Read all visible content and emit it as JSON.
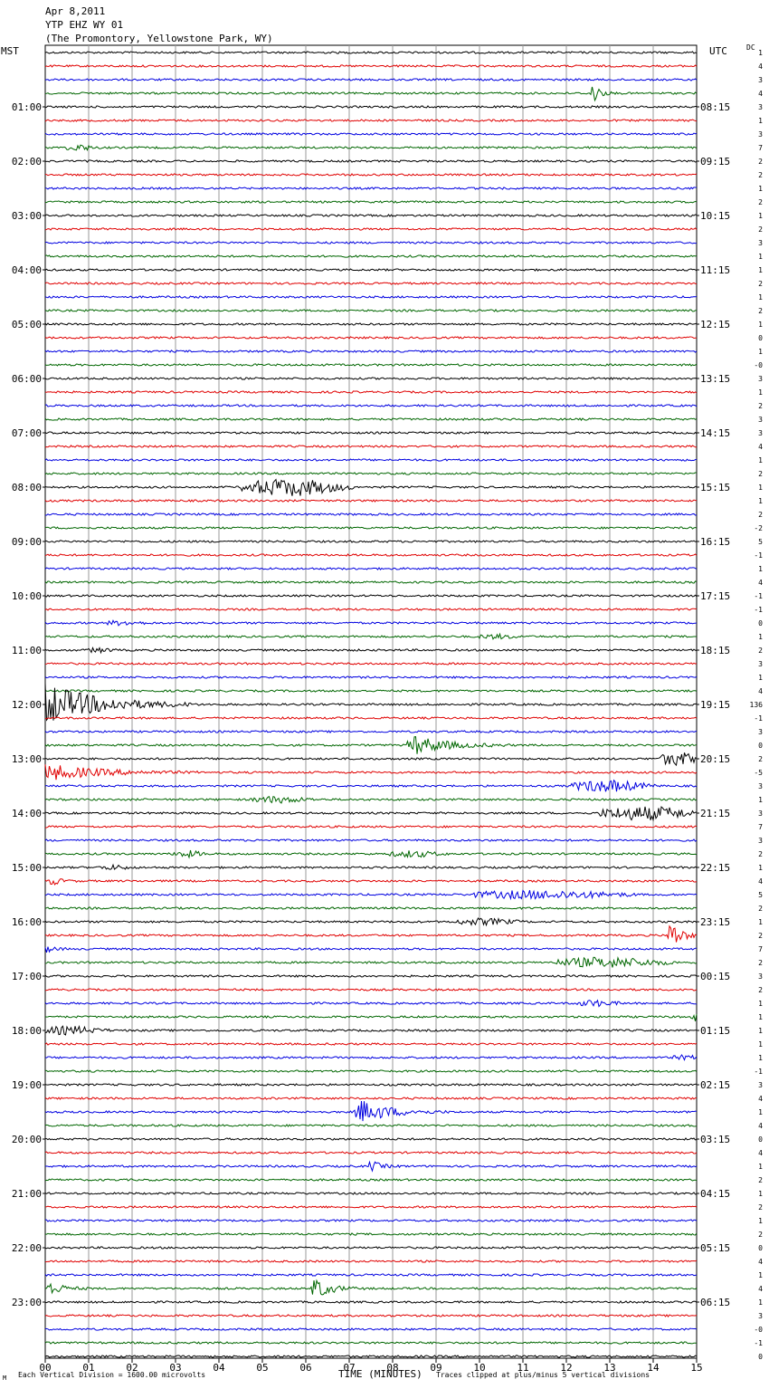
{
  "header": {
    "date": "Apr 8,2011",
    "station": "YTP EHZ WY 01",
    "location": "(The Promontory, Yellowstone Park, WY)"
  },
  "left_axis_title": "MST",
  "right_axis_title": "UTC",
  "dc_title": "DC",
  "footer": {
    "scale_note": "Each Vertical Division = 1600.00 microvolts",
    "xlabel": "TIME (MINUTES)",
    "clip_note": "Traces clipped at plus/minus 5 vertical divisions",
    "corner_mark": "M"
  },
  "chart_data": {
    "type": "line",
    "x_range": [
      0,
      15
    ],
    "x_ticks": [
      "00",
      "01",
      "02",
      "03",
      "04",
      "05",
      "06",
      "07",
      "08",
      "09",
      "10",
      "11",
      "12",
      "13",
      "14",
      "15"
    ],
    "row_minutes": 15,
    "trace_colors": [
      "#000000",
      "#e00000",
      "#0000e0",
      "#006600"
    ],
    "left_hour_labels": [
      "01:00",
      "02:00",
      "03:00",
      "04:00",
      "05:00",
      "06:00",
      "07:00",
      "08:00",
      "09:00",
      "10:00",
      "11:00",
      "12:00",
      "13:00",
      "14:00",
      "15:00",
      "16:00",
      "17:00",
      "18:00",
      "19:00",
      "20:00",
      "21:00",
      "22:00",
      "23:00"
    ],
    "right_hour_labels": [
      "08:15",
      "09:15",
      "10:15",
      "11:15",
      "12:15",
      "13:15",
      "14:15",
      "15:15",
      "16:15",
      "17:15",
      "18:15",
      "19:15",
      "20:15",
      "21:15",
      "22:15",
      "23:15",
      "00:15",
      "01:15",
      "02:15",
      "03:15",
      "04:15",
      "05:15",
      "06:15"
    ],
    "dc_offsets": [
      "1",
      "4",
      "3",
      "4",
      "3",
      "1",
      "3",
      "7",
      "2",
      "2",
      "1",
      "2",
      "1",
      "2",
      "3",
      "1",
      "1",
      "2",
      "1",
      "2",
      "1",
      "0",
      "1",
      "-0",
      "3",
      "1",
      "2",
      "3",
      "3",
      "4",
      "1",
      "2",
      "1",
      "1",
      "2",
      "-2",
      "5",
      "-1",
      "1",
      "4",
      "-1",
      "-1",
      "0",
      "1",
      "2",
      "3",
      "1",
      "4",
      "136",
      "-1",
      "3",
      "0",
      "2",
      "-5",
      "3",
      "1",
      "3",
      "7",
      "3",
      "2",
      "1",
      "4",
      "5",
      "2",
      "1",
      "2",
      "7",
      "2",
      "3",
      "2",
      "1",
      "1",
      "1",
      "1",
      "1",
      "-1",
      "3",
      "4",
      "1",
      "4",
      "0",
      "4",
      "1",
      "2",
      "1",
      "2",
      "1",
      "2",
      "0",
      "4",
      "1",
      "4",
      "1",
      "3",
      "-0",
      "-1",
      "0"
    ],
    "events": [
      {
        "row": 3,
        "minute": 12.6,
        "duration": 0.4,
        "amplitude": 13,
        "type": "sharp"
      },
      {
        "row": 7,
        "minute": 0.55,
        "duration": 0.5,
        "amplitude": 3,
        "type": "emergent"
      },
      {
        "row": 32,
        "minute": 4.6,
        "duration": 2.2,
        "amplitude": 9,
        "type": "emergent"
      },
      {
        "row": 42,
        "minute": 1.4,
        "duration": 0.8,
        "amplitude": 2,
        "type": "emergent"
      },
      {
        "row": 43,
        "minute": 10.0,
        "duration": 0.8,
        "amplitude": 2,
        "type": "emergent"
      },
      {
        "row": 44,
        "minute": 1.0,
        "duration": 0.5,
        "amplitude": 2,
        "type": "emergent"
      },
      {
        "row": 48,
        "minute": 0.0,
        "duration": 3.2,
        "amplitude": 24,
        "type": "sharp"
      },
      {
        "row": 51,
        "minute": 8.4,
        "duration": 2.0,
        "amplitude": 12,
        "type": "sharp"
      },
      {
        "row": 52,
        "minute": 14.2,
        "duration": 0.8,
        "amplitude": 7,
        "type": "emergent"
      },
      {
        "row": 53,
        "minute": 0.0,
        "duration": 3.2,
        "amplitude": 9,
        "type": "sharp"
      },
      {
        "row": 54,
        "minute": 12.2,
        "duration": 1.6,
        "amplitude": 6,
        "type": "emergent"
      },
      {
        "row": 55,
        "minute": 4.8,
        "duration": 1.2,
        "amplitude": 3,
        "type": "emergent"
      },
      {
        "row": 56,
        "minute": 12.8,
        "duration": 2.2,
        "amplitude": 7,
        "type": "emergent"
      },
      {
        "row": 59,
        "minute": 3.0,
        "duration": 0.6,
        "amplitude": 3,
        "type": "emergent"
      },
      {
        "row": 59,
        "minute": 8.0,
        "duration": 1.0,
        "amplitude": 3,
        "type": "emergent"
      },
      {
        "row": 60,
        "minute": 1.3,
        "duration": 0.6,
        "amplitude": 2,
        "type": "emergent"
      },
      {
        "row": 61,
        "minute": 0.15,
        "duration": 0.5,
        "amplitude": 5,
        "type": "sharp"
      },
      {
        "row": 62,
        "minute": 9.8,
        "duration": 3.5,
        "amplitude": 4,
        "type": "emergent"
      },
      {
        "row": 64,
        "minute": 9.5,
        "duration": 1.3,
        "amplitude": 3,
        "type": "emergent"
      },
      {
        "row": 65,
        "minute": 14.4,
        "duration": 0.6,
        "amplitude": 18,
        "type": "sharp"
      },
      {
        "row": 66,
        "minute": 0.0,
        "duration": 0.5,
        "amplitude": 4,
        "type": "sharp"
      },
      {
        "row": 67,
        "minute": 11.8,
        "duration": 2.4,
        "amplitude": 5,
        "type": "emergent"
      },
      {
        "row": 70,
        "minute": 12.3,
        "duration": 0.8,
        "amplitude": 3,
        "type": "emergent"
      },
      {
        "row": 71,
        "minute": 14.9,
        "duration": 0.1,
        "amplitude": 4,
        "type": "emergent"
      },
      {
        "row": 72,
        "minute": 0.0,
        "duration": 1.2,
        "amplitude": 4,
        "type": "emergent"
      },
      {
        "row": 74,
        "minute": 14.5,
        "duration": 0.5,
        "amplitude": 2,
        "type": "emergent"
      },
      {
        "row": 78,
        "minute": 7.2,
        "duration": 1.8,
        "amplitude": 14,
        "type": "sharp"
      },
      {
        "row": 82,
        "minute": 7.5,
        "duration": 0.6,
        "amplitude": 6,
        "type": "sharp"
      },
      {
        "row": 91,
        "minute": 0.1,
        "duration": 0.8,
        "amplitude": 8,
        "type": "sharp"
      },
      {
        "row": 91,
        "minute": 6.2,
        "duration": 0.9,
        "amplitude": 13,
        "type": "sharp"
      }
    ]
  }
}
